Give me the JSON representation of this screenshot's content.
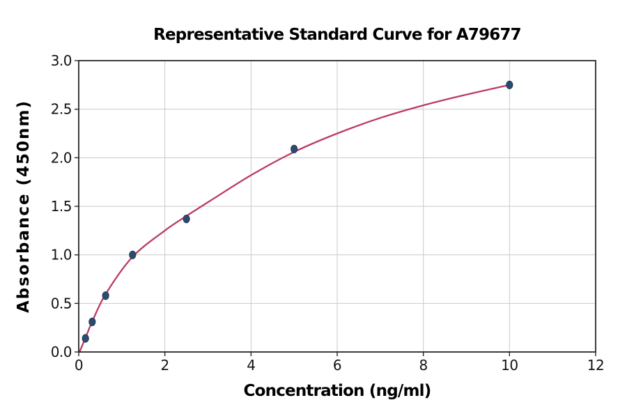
{
  "chart_data": {
    "type": "scatter",
    "title": "Representative Standard Curve for A79677",
    "xlabel": "Concentration (ng/ml)",
    "ylabel": "Absorbance (450nm)",
    "xlim": [
      0,
      12
    ],
    "ylim": [
      0,
      3
    ],
    "grid": true,
    "legend": "none",
    "x_ticks": [
      0,
      2,
      4,
      6,
      8,
      10,
      12
    ],
    "x_tick_labels": [
      "0",
      "2",
      "4",
      "6",
      "8",
      "10",
      "12"
    ],
    "y_ticks": [
      0,
      0.5,
      1.0,
      1.5,
      2.0,
      2.5,
      3.0
    ],
    "y_tick_labels": [
      "0.0",
      "0.5",
      "1.0",
      "1.5",
      "2.0",
      "2.5",
      "3.0"
    ],
    "points": [
      {
        "x": 0.156,
        "y": 0.14
      },
      {
        "x": 0.313,
        "y": 0.31
      },
      {
        "x": 0.625,
        "y": 0.58
      },
      {
        "x": 1.25,
        "y": 1.0
      },
      {
        "x": 2.5,
        "y": 1.37
      },
      {
        "x": 5.0,
        "y": 2.09
      },
      {
        "x": 10.0,
        "y": 2.75
      }
    ],
    "fit_curve": {
      "x": [
        0.02,
        0.16,
        0.32,
        0.63,
        1.25,
        2.0,
        2.5,
        3.1,
        4.0,
        5.0,
        6.0,
        7.0,
        8.0,
        9.0,
        10.0
      ],
      "y": [
        0.0,
        0.15,
        0.32,
        0.6,
        0.98,
        1.25,
        1.4,
        1.57,
        1.82,
        2.06,
        2.25,
        2.41,
        2.54,
        2.65,
        2.75
      ]
    },
    "colors": {
      "curve": "#bd3a63",
      "point_fill": "#2d4b6d",
      "point_edge": "#1f3a57",
      "grid": "#c9c9c9",
      "spine": "#262626",
      "text": "#000000"
    }
  }
}
